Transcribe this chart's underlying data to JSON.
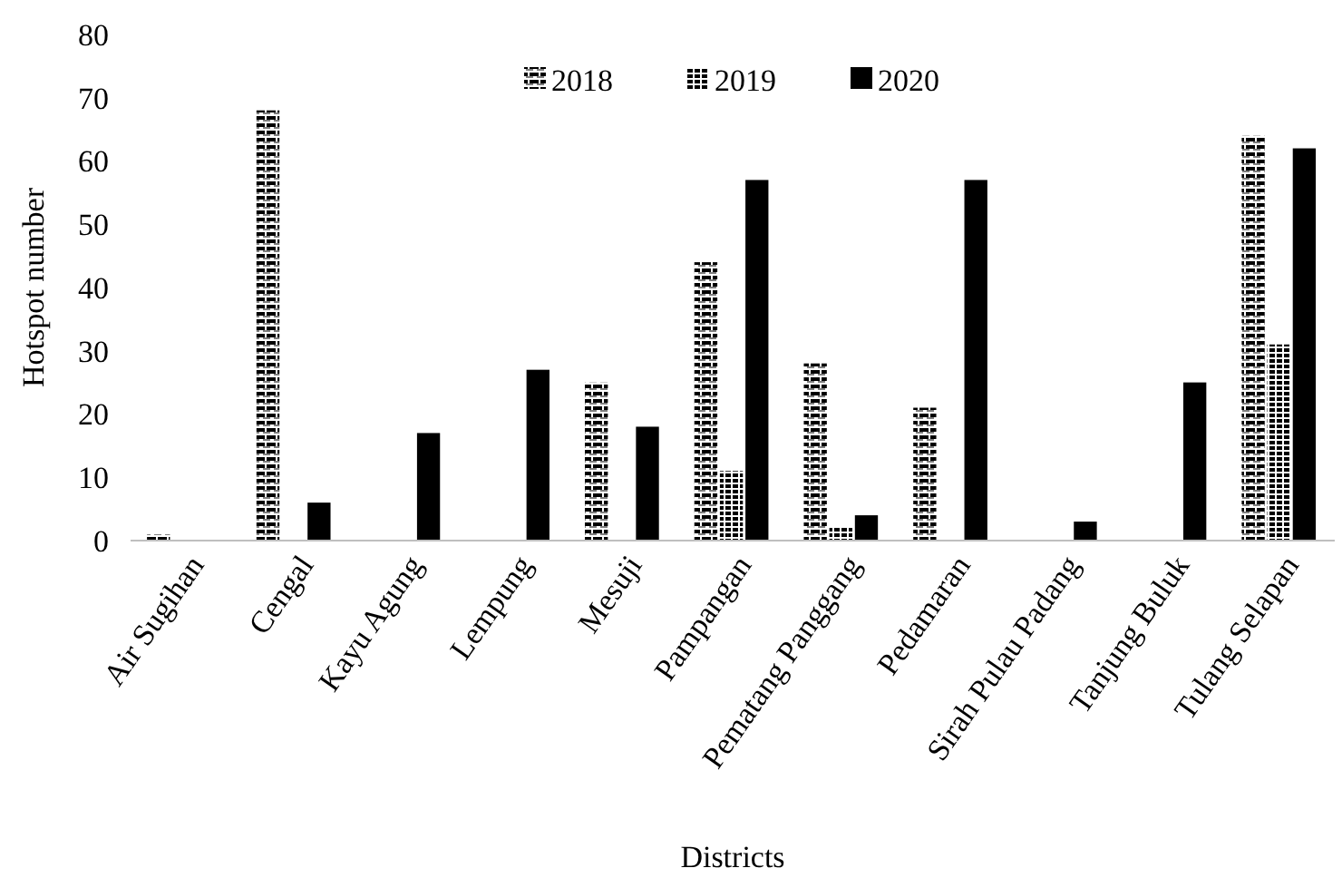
{
  "chart_data": {
    "type": "bar",
    "xlabel": "Districts",
    "ylabel": "Hotspot number",
    "categories": [
      "Air Sugihan",
      "Cengal",
      "Kayu Agung",
      "Lempung",
      "Mesuji",
      "Pampangan",
      "Pematang Panggang",
      "Pedamaran",
      "Sirah Pulau Padang",
      "Tanjung Buluk",
      "Tulang Selapan"
    ],
    "series": [
      {
        "name": "2018",
        "color": "#000000",
        "values": [
          1,
          68,
          0,
          0,
          25,
          44,
          28,
          21,
          0,
          0,
          64
        ]
      },
      {
        "name": "2019",
        "color": "#000000",
        "values": [
          0,
          0,
          0,
          0,
          0,
          11,
          2,
          0,
          0,
          0,
          31
        ]
      },
      {
        "name": "2020",
        "color": "#000000",
        "values": [
          0,
          6,
          17,
          27,
          18,
          57,
          4,
          57,
          3,
          25,
          62
        ]
      }
    ],
    "ylim": [
      0,
      80
    ],
    "yticks": [
      0,
      10,
      20,
      30,
      40,
      50,
      60,
      70,
      80
    ],
    "grid": false,
    "legend": "top"
  }
}
